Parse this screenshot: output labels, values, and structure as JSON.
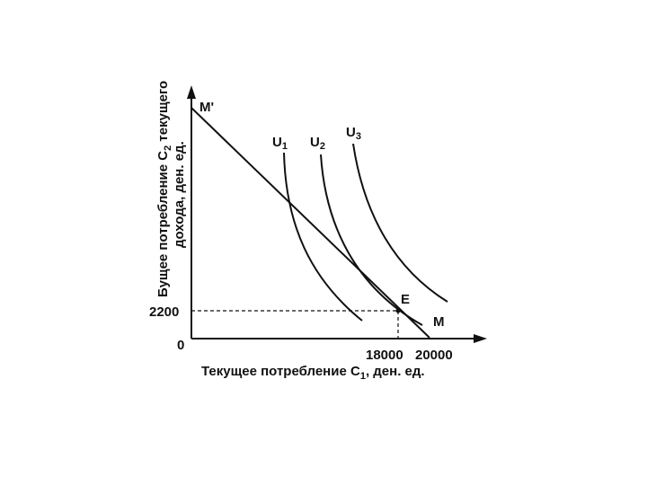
{
  "chart_data": {
    "type": "line",
    "title": "",
    "xlabel": "Текущее потребление C",
    "xlabel_sub": "1",
    "xlabel_suffix": ", ден. ед.",
    "ylabel_line1": "Бущее потребление C",
    "ylabel_sub": "2",
    "ylabel_line1_suffix": " текущего",
    "ylabel_line2": "дохода, ден. ед.",
    "origin_label": "0",
    "x_ticks": [
      "18000",
      "20000"
    ],
    "y_ticks": [
      "2200"
    ],
    "budget_line": {
      "start_label": "M'",
      "end_label": "M"
    },
    "equilibrium_point": {
      "label": "E",
      "x": 18000,
      "y": 2200
    },
    "curves": [
      {
        "name": "U",
        "sub": "1"
      },
      {
        "name": "U",
        "sub": "2"
      },
      {
        "name": "U",
        "sub": "3"
      }
    ],
    "grid": false
  }
}
